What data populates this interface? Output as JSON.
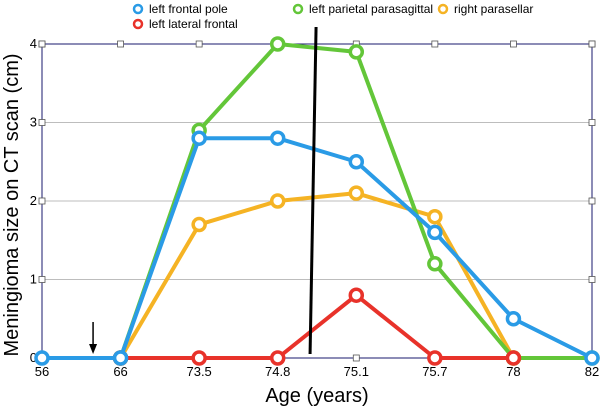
{
  "chart_data": {
    "type": "line",
    "title": "",
    "xlabel": "Age (years)",
    "ylabel": "Meningioma size on CT scan (cm)",
    "categories": [
      "56",
      "66",
      "73.5",
      "74.8",
      "75.1",
      "75.7",
      "78",
      "82"
    ],
    "ylim": [
      0,
      4
    ],
    "yticks": [
      "0",
      "1",
      "2",
      "3",
      "4"
    ],
    "grid": true,
    "legend_position": "top",
    "series": [
      {
        "name": "left frontal pole",
        "color": "#2a9be6",
        "values": [
          0,
          0,
          2.8,
          2.8,
          2.5,
          1.6,
          0.5,
          0
        ]
      },
      {
        "name": "left lateral frontal",
        "color": "#e8322a",
        "values": [
          null,
          0,
          0,
          0,
          0.8,
          0,
          0,
          null
        ]
      },
      {
        "name": "left parietal parasagittal",
        "color": "#63c639",
        "values": [
          null,
          0,
          2.9,
          4.0,
          3.9,
          1.2,
          0,
          0
        ]
      },
      {
        "name": "right parasellar",
        "color": "#f5b324",
        "values": [
          null,
          0,
          1.7,
          2.0,
          2.1,
          1.8,
          0,
          null
        ]
      }
    ],
    "annotations": {
      "arrow_marker": {
        "x_between": [
          "56",
          "66"
        ],
        "y": 0
      },
      "vertical_line": {
        "x_between": [
          "74.8",
          "75.1"
        ],
        "color": "#000000"
      }
    }
  }
}
